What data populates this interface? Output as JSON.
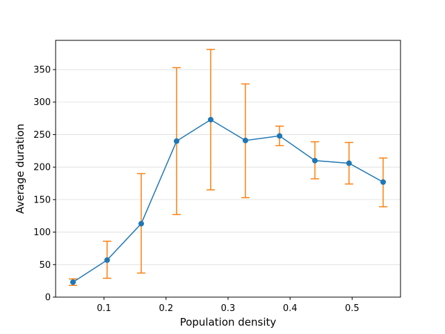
{
  "chart_data": {
    "type": "line",
    "xlabel": "Population density",
    "ylabel": "Average duration",
    "xlim": [
      0.022,
      0.578
    ],
    "ylim": [
      0,
      395
    ],
    "xticks": [
      0.1,
      0.2,
      0.3,
      0.4,
      0.5
    ],
    "xtick_labels": [
      "0.1",
      "0.2",
      "0.3",
      "0.4",
      "0.5"
    ],
    "yticks": [
      0,
      50,
      100,
      150,
      200,
      250,
      300,
      350
    ],
    "ytick_labels": [
      "0",
      "50",
      "100",
      "150",
      "200",
      "250",
      "300",
      "350"
    ],
    "grid": "horizontal",
    "series": [
      {
        "x": [
          0.05,
          0.105,
          0.16,
          0.217,
          0.272,
          0.328,
          0.383,
          0.44,
          0.495,
          0.55
        ],
        "y": [
          23,
          57,
          113,
          240,
          273,
          241,
          248,
          210,
          206,
          177
        ],
        "err_low": [
          18,
          29,
          37,
          127,
          165,
          153,
          233,
          182,
          174,
          139
        ],
        "err_high": [
          28,
          86,
          190,
          353,
          381,
          328,
          263,
          239,
          238,
          214
        ],
        "color": "#1f77b4",
        "error_color": "#ff7f0e"
      }
    ]
  }
}
